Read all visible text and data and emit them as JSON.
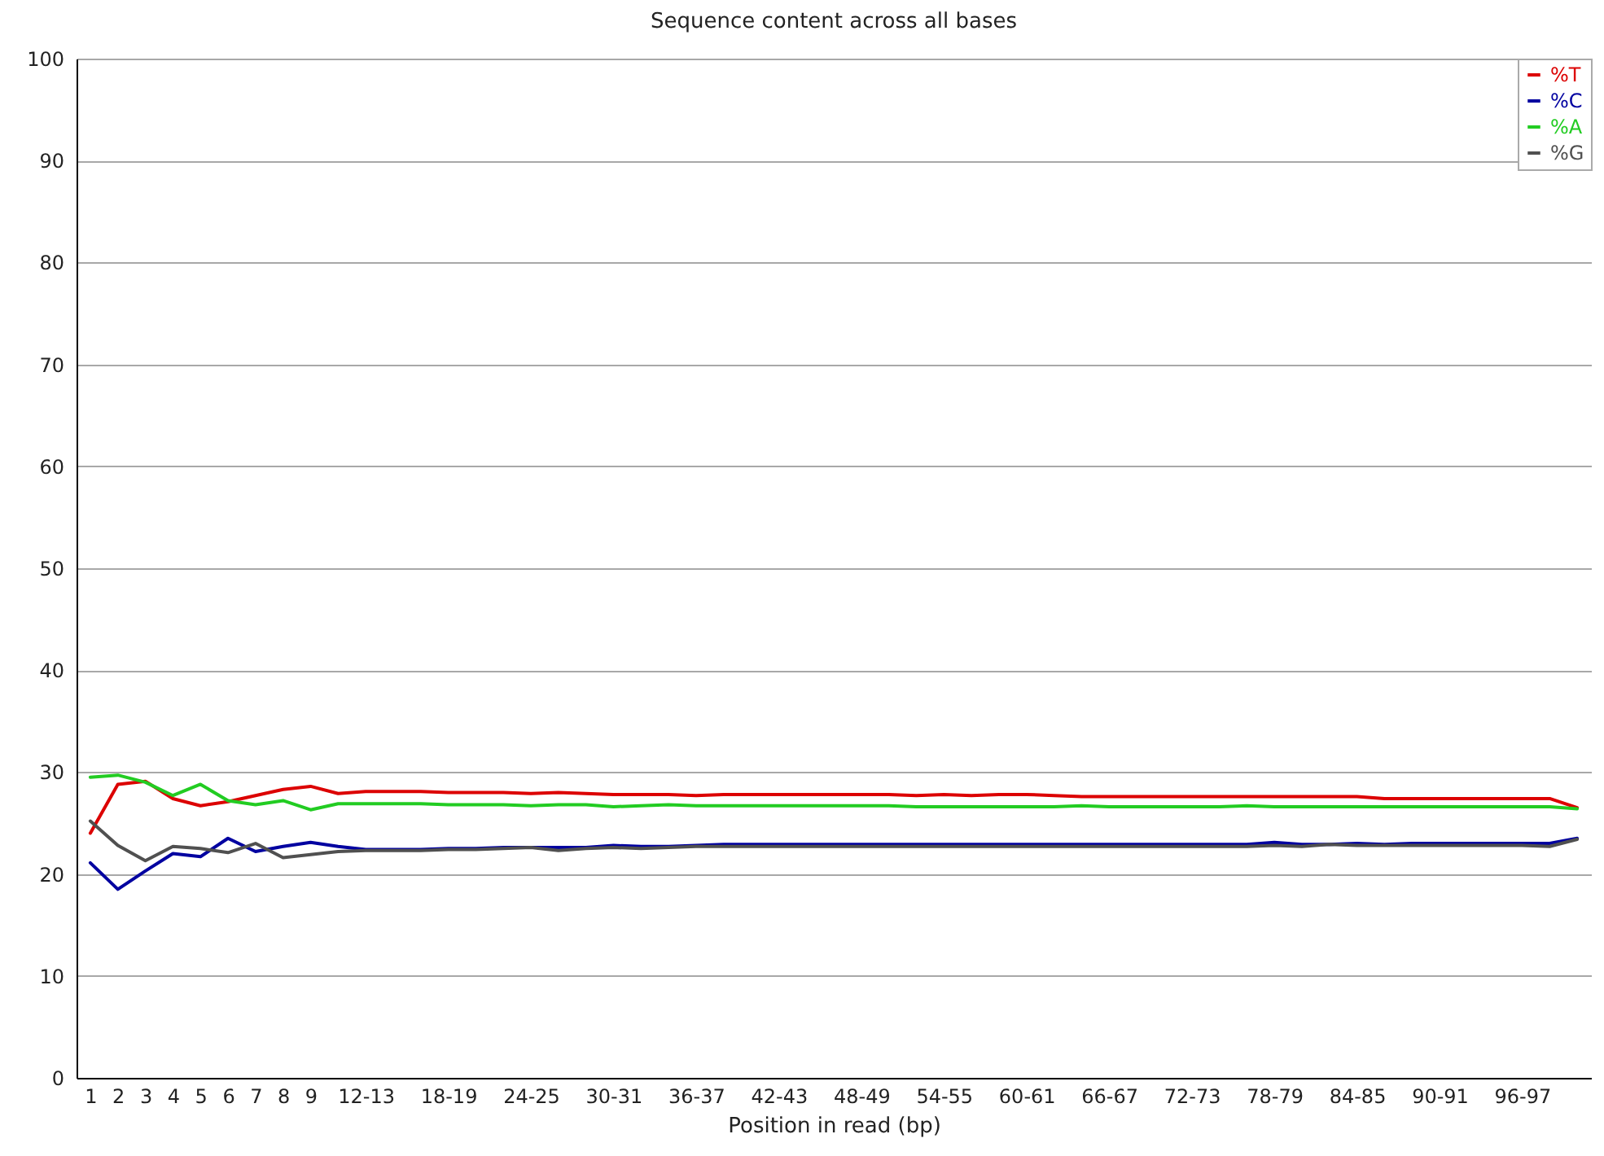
{
  "chart_data": {
    "type": "line",
    "title": "Sequence content across all bases",
    "xlabel": "Position in read (bp)",
    "categories": [
      "1",
      "2",
      "3",
      "4",
      "5",
      "6",
      "7",
      "8",
      "9",
      null,
      "12-13",
      null,
      null,
      "18-19",
      null,
      null,
      "24-25",
      null,
      null,
      "30-31",
      null,
      null,
      "36-37",
      null,
      null,
      "42-43",
      null,
      null,
      "48-49",
      null,
      null,
      "54-55",
      null,
      null,
      "60-61",
      null,
      null,
      "66-67",
      null,
      null,
      "72-73",
      null,
      null,
      "78-79",
      null,
      null,
      "84-85",
      null,
      null,
      "90-91",
      null,
      null,
      "96-97",
      null,
      null
    ],
    "series": [
      {
        "name": "%T",
        "color": "#dc0000",
        "values": [
          24.0,
          28.8,
          29.1,
          27.4,
          26.7,
          27.1,
          27.7,
          28.3,
          28.6,
          27.9,
          28.1,
          28.1,
          28.1,
          28.0,
          28.0,
          28.0,
          27.9,
          28.0,
          27.9,
          27.8,
          27.8,
          27.8,
          27.7,
          27.8,
          27.8,
          27.8,
          27.8,
          27.8,
          27.8,
          27.8,
          27.7,
          27.8,
          27.7,
          27.8,
          27.8,
          27.7,
          27.6,
          27.6,
          27.6,
          27.6,
          27.6,
          27.6,
          27.6,
          27.6,
          27.6,
          27.6,
          27.6,
          27.4,
          27.4,
          27.4,
          27.4,
          27.4,
          27.4,
          27.4,
          26.5
        ]
      },
      {
        "name": "%C",
        "color": "#0000a0",
        "values": [
          21.1,
          18.5,
          20.3,
          22.0,
          21.7,
          23.5,
          22.2,
          22.7,
          23.1,
          22.7,
          22.4,
          22.4,
          22.4,
          22.5,
          22.5,
          22.6,
          22.6,
          22.6,
          22.6,
          22.8,
          22.7,
          22.7,
          22.8,
          22.9,
          22.9,
          22.9,
          22.9,
          22.9,
          22.9,
          22.9,
          22.9,
          22.9,
          22.9,
          22.9,
          22.9,
          22.9,
          22.9,
          22.9,
          22.9,
          22.9,
          22.9,
          22.9,
          22.9,
          23.1,
          22.9,
          22.9,
          23.0,
          22.9,
          23.0,
          23.0,
          23.0,
          23.0,
          23.0,
          23.0,
          23.5
        ]
      },
      {
        "name": "%A",
        "color": "#22cc22",
        "values": [
          29.5,
          29.7,
          29.0,
          27.7,
          28.8,
          27.2,
          26.8,
          27.2,
          26.3,
          26.9,
          26.9,
          26.9,
          26.9,
          26.8,
          26.8,
          26.8,
          26.7,
          26.8,
          26.8,
          26.6,
          26.7,
          26.8,
          26.7,
          26.7,
          26.7,
          26.7,
          26.7,
          26.7,
          26.7,
          26.7,
          26.6,
          26.6,
          26.6,
          26.6,
          26.6,
          26.6,
          26.7,
          26.6,
          26.6,
          26.6,
          26.6,
          26.6,
          26.7,
          26.6,
          26.6,
          26.6,
          26.6,
          26.6,
          26.6,
          26.6,
          26.6,
          26.6,
          26.6,
          26.6,
          26.4
        ]
      },
      {
        "name": "%G",
        "color": "#505050",
        "values": [
          25.2,
          22.8,
          21.3,
          22.7,
          22.5,
          22.1,
          23.0,
          21.6,
          21.9,
          22.2,
          22.3,
          22.3,
          22.3,
          22.4,
          22.4,
          22.5,
          22.6,
          22.3,
          22.5,
          22.6,
          22.5,
          22.6,
          22.7,
          22.7,
          22.7,
          22.7,
          22.7,
          22.7,
          22.7,
          22.7,
          22.7,
          22.7,
          22.7,
          22.7,
          22.7,
          22.7,
          22.7,
          22.7,
          22.7,
          22.7,
          22.7,
          22.7,
          22.7,
          22.8,
          22.7,
          22.9,
          22.8,
          22.8,
          22.8,
          22.8,
          22.8,
          22.8,
          22.8,
          22.7,
          23.4
        ]
      }
    ],
    "ylim": [
      0,
      100
    ],
    "yticks": [
      0,
      10,
      20,
      30,
      40,
      50,
      60,
      70,
      80,
      90,
      100
    ],
    "grid": "y",
    "legend": "top right",
    "marker": "none",
    "line_style": "solid"
  }
}
